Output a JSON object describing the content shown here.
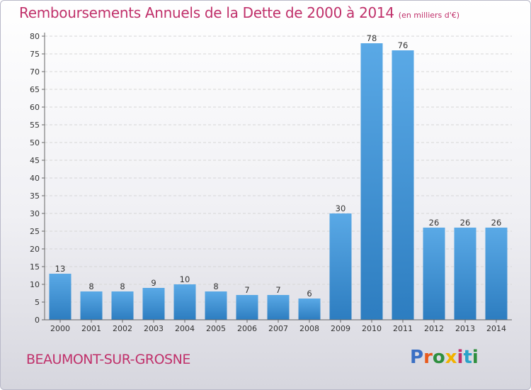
{
  "title": "Remboursements Annuels de la Dette de 2000 à 2014",
  "subtitle": "(en milliers d'€)",
  "commune": "BEAUMONT-SUR-GROSNE",
  "logo": {
    "letters": [
      "P",
      "r",
      "o",
      "x",
      "i",
      "t",
      "i"
    ]
  },
  "colors": {
    "title": "#c0306a",
    "bar_top": "#5aa9e6",
    "bar_bottom": "#2d7dc0",
    "axis": "#666666",
    "grid": "#d6d6d6"
  },
  "chart_data": {
    "type": "bar",
    "categories": [
      "2000",
      "2001",
      "2002",
      "2003",
      "2004",
      "2005",
      "2006",
      "2007",
      "2008",
      "2009",
      "2010",
      "2011",
      "2012",
      "2013",
      "2014"
    ],
    "values": [
      13,
      8,
      8,
      9,
      10,
      8,
      7,
      7,
      6,
      30,
      78,
      76,
      26,
      26,
      26
    ],
    "data_labels": [
      "13",
      "8",
      "8",
      "9",
      "10",
      "8",
      "7",
      "7",
      "6",
      "30",
      "78",
      "76",
      "26",
      "26",
      "26"
    ],
    "title": "Remboursements Annuels de la Dette de 2000 à 2014",
    "xlabel": "",
    "ylabel": "",
    "ylim": [
      0,
      80
    ],
    "yticks": [
      0,
      5,
      10,
      15,
      20,
      25,
      30,
      35,
      40,
      45,
      50,
      55,
      60,
      65,
      70,
      75,
      80
    ],
    "grid": true
  }
}
